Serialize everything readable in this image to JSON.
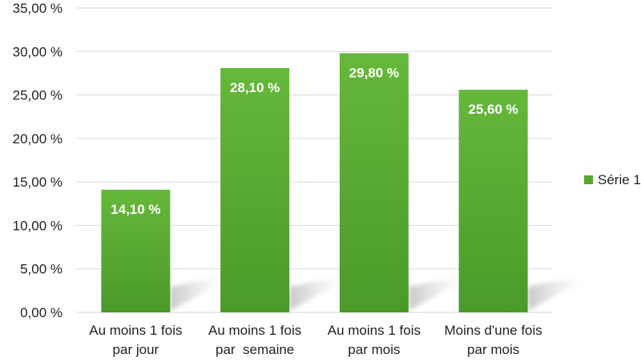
{
  "chart_data": {
    "type": "bar",
    "categories": [
      [
        "Au moins 1 fois",
        "par jour"
      ],
      [
        "Au moins 1 fois",
        "par  semaine"
      ],
      [
        "Au moins 1 fois",
        "par mois"
      ],
      [
        "Moins d'une fois",
        "par mois"
      ]
    ],
    "series": [
      {
        "name": "Série 1",
        "values": [
          14.1,
          28.1,
          29.8,
          25.6
        ],
        "labels": [
          "14,10 %",
          "28,10 %",
          "29,80 %",
          "25,60 %"
        ],
        "color": "#5aa833"
      }
    ],
    "y_ticks": [
      "0,00 %",
      "5,00 %",
      "10,00 %",
      "15,00 %",
      "20,00 %",
      "25,00 %",
      "30,00 %",
      "35,00 %"
    ],
    "ylim": [
      0,
      35
    ],
    "grid": true,
    "legend_position": "right"
  }
}
